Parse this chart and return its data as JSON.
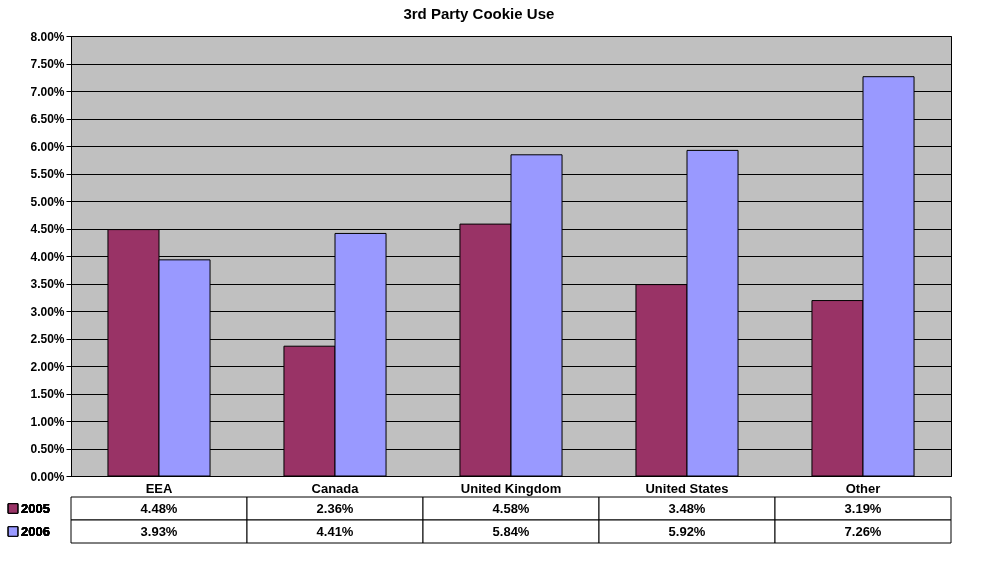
{
  "chart_data": {
    "type": "bar",
    "title": "3rd Party Cookie Use",
    "categories": [
      "EEA",
      "Canada",
      "United Kingdom",
      "United States",
      "Other"
    ],
    "series": [
      {
        "name": "2005",
        "color": "#993366",
        "values": [
          4.48,
          2.36,
          4.58,
          3.48,
          3.19
        ],
        "value_labels": [
          "4.48%",
          "2.36%",
          "4.58%",
          "3.48%",
          "3.19%"
        ]
      },
      {
        "name": "2006",
        "color": "#9999ff",
        "values": [
          3.93,
          4.41,
          5.84,
          5.92,
          7.26
        ],
        "value_labels": [
          "3.93%",
          "4.41%",
          "5.84%",
          "5.92%",
          "7.26%"
        ]
      }
    ],
    "ylim": [
      0,
      8
    ],
    "yticks": [
      {
        "value": 0,
        "label": "0.00%"
      },
      {
        "value": 0.5,
        "label": "0.50%"
      },
      {
        "value": 1,
        "label": "1.00%"
      },
      {
        "value": 1.5,
        "label": "1.50%"
      },
      {
        "value": 2,
        "label": "2.00%"
      },
      {
        "value": 2.5,
        "label": "2.50%"
      },
      {
        "value": 3,
        "label": "3.00%"
      },
      {
        "value": 3.5,
        "label": "3.50%"
      },
      {
        "value": 4,
        "label": "4.00%"
      },
      {
        "value": 4.5,
        "label": "4.50%"
      },
      {
        "value": 5,
        "label": "5.00%"
      },
      {
        "value": 5.5,
        "label": "5.50%"
      },
      {
        "value": 6,
        "label": "6.00%"
      },
      {
        "value": 6.5,
        "label": "6.50%"
      },
      {
        "value": 7,
        "label": "7.00%"
      },
      {
        "value": 7.5,
        "label": "7.50%"
      },
      {
        "value": 8,
        "label": "8.00%"
      }
    ],
    "grid": "y",
    "legend": "bottom"
  }
}
